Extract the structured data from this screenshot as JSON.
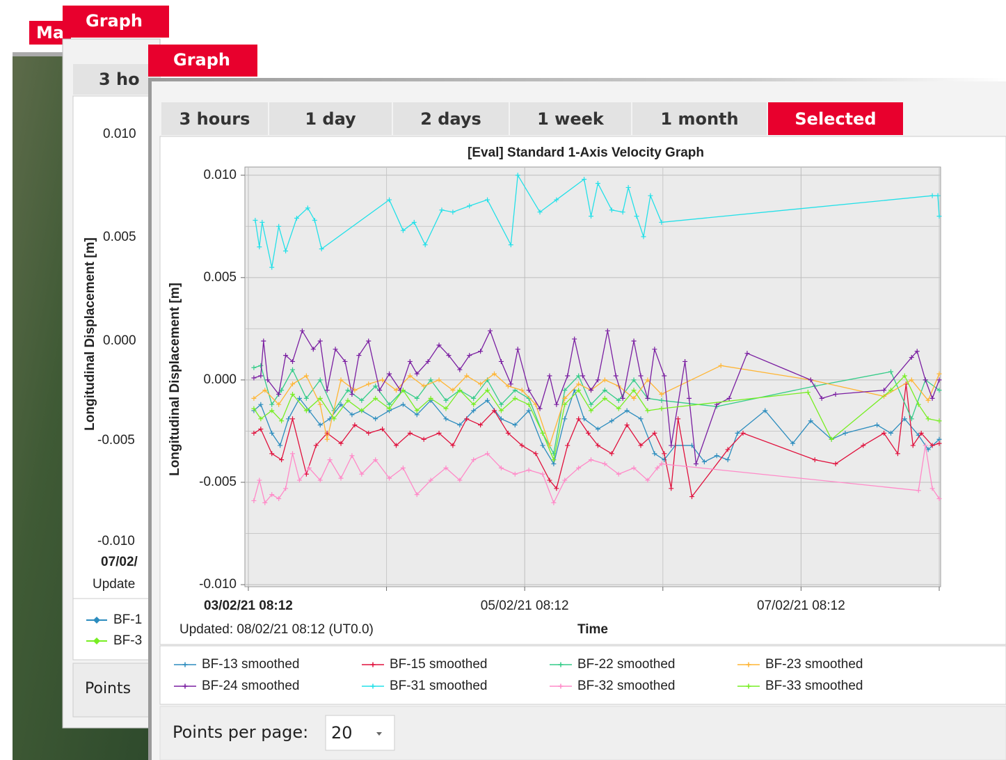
{
  "background_window": {
    "tab": "Ma"
  },
  "back_graph": {
    "tab": "Graph",
    "time_tab": "3 ho",
    "ylabel": "Longitudinal Displacement [m]",
    "y_labels": [
      "0.010",
      "0.005",
      "0.000",
      "-0.005",
      "-0.010"
    ],
    "date": "07/02/",
    "updated": "Update",
    "legend": [
      "BF-1",
      "BF-3"
    ],
    "points": "Points"
  },
  "front_graph": {
    "tab": "Graph",
    "time_tabs": [
      "3 hours",
      "1 day",
      "2 days",
      "1 week",
      "1 month",
      "Selected"
    ],
    "selected_tab": 5,
    "points_per_page_label": "Points per page:",
    "points_per_page": 20
  },
  "chart_data": {
    "type": "line",
    "title": "[Eval] Standard 1-Axis Velocity Graph",
    "xlabel": "Time",
    "ylabel": "Longitudinal Displacement [m]",
    "updated": "Updated: 08/02/21 08:12 (UT0.0)",
    "xlim": [
      -0.025,
      5.01
    ],
    "ylim": [
      -0.0101,
      0.0104
    ],
    "xticks": [
      {
        "value": 0,
        "label": "03/02/21 08:12"
      },
      {
        "value": 2,
        "label": "05/02/21 08:12"
      },
      {
        "value": 4,
        "label": "07/02/21 08:12"
      }
    ],
    "x_minor_ticks": [
      1,
      3,
      5
    ],
    "yticks": [
      {
        "value": 0.01,
        "label": "0.010"
      },
      0.005,
      {
        "value": 0,
        "label": "0.000"
      },
      -0.005,
      {
        "value": -0.01,
        "label": "-0.010"
      }
    ],
    "y_minor_ticks": [
      0.0075,
      0.0025,
      -0.0025,
      -0.0075
    ],
    "grid": true,
    "series": [
      {
        "name": "BF-13 smoothed",
        "color": "#2b8cbe",
        "x": [
          0.04,
          0.09,
          0.17,
          0.23,
          0.29,
          0.37,
          0.44,
          0.52,
          0.59,
          0.67,
          0.75,
          0.82,
          0.92,
          1.02,
          1.12,
          1.22,
          1.32,
          1.43,
          1.53,
          1.63,
          1.73,
          1.83,
          1.93,
          2.03,
          2.13,
          2.21,
          2.29,
          2.36,
          2.43,
          2.53,
          2.63,
          2.74,
          2.84,
          2.94,
          3.01,
          3.09,
          3.21,
          3.3,
          3.39,
          3.47,
          3.54,
          3.74,
          3.94,
          4.07,
          4.22,
          4.32,
          4.55,
          4.65,
          4.75,
          4.85,
          4.92,
          5.0
        ],
        "values": [
          -0.0015,
          -0.0012,
          -0.0026,
          -0.0032,
          -0.0019,
          -0.0009,
          -0.0015,
          -0.0022,
          -0.0019,
          -0.0012,
          -0.0017,
          -0.0015,
          -0.0019,
          -0.0015,
          -0.0012,
          -0.0017,
          -0.001,
          -0.0019,
          -0.0022,
          -0.0015,
          -0.001,
          -0.0019,
          -0.0022,
          -0.0015,
          -0.0032,
          -0.0041,
          -0.0019,
          -0.0005,
          -0.0019,
          -0.0024,
          -0.002,
          -0.0015,
          -0.0019,
          -0.0036,
          -0.0039,
          -0.0032,
          -0.0032,
          -0.004,
          -0.0037,
          -0.0039,
          -0.0026,
          -0.0015,
          -0.0031,
          -0.002,
          -0.0029,
          -0.0026,
          -0.0022,
          -0.0026,
          -0.0019,
          -0.0027,
          -0.0034,
          -0.0029
        ]
      },
      {
        "name": "BF-15 smoothed",
        "color": "#e0103c",
        "x": [
          0.04,
          0.09,
          0.17,
          0.24,
          0.32,
          0.42,
          0.49,
          0.57,
          0.67,
          0.77,
          0.87,
          0.97,
          1.07,
          1.17,
          1.27,
          1.38,
          1.48,
          1.58,
          1.68,
          1.78,
          1.88,
          1.98,
          2.08,
          2.18,
          2.23,
          2.31,
          2.39,
          2.46,
          2.53,
          2.63,
          2.74,
          2.84,
          2.94,
          3.01,
          3.06,
          3.11,
          3.21,
          3.47,
          3.58,
          4.1,
          4.25,
          4.45,
          4.6,
          4.7,
          4.76,
          4.81,
          4.87,
          4.95,
          5.0
        ],
        "values": [
          -0.0026,
          -0.0024,
          -0.0036,
          -0.0039,
          -0.0019,
          -0.0046,
          -0.0032,
          -0.0026,
          -0.0031,
          -0.0022,
          -0.0026,
          -0.0024,
          -0.0032,
          -0.0026,
          -0.0029,
          -0.0026,
          -0.0032,
          -0.0019,
          -0.0022,
          -0.0015,
          -0.0026,
          -0.0032,
          -0.0036,
          -0.0049,
          -0.0053,
          -0.0032,
          -0.0019,
          -0.0026,
          -0.0032,
          -0.0036,
          -0.0022,
          -0.0032,
          -0.0026,
          -0.0036,
          -0.0053,
          -0.0019,
          -0.0057,
          -0.0034,
          -0.0026,
          -0.0039,
          -0.0041,
          -0.0032,
          -0.0026,
          -0.0036,
          -0.0002,
          -0.0032,
          -0.0026,
          -0.0032,
          -0.0031
        ]
      },
      {
        "name": "BF-22 smoothed",
        "color": "#33cc88",
        "x": [
          0.04,
          0.09,
          0.17,
          0.24,
          0.32,
          0.42,
          0.52,
          0.62,
          0.72,
          0.82,
          0.92,
          1.02,
          1.12,
          1.22,
          1.32,
          1.43,
          1.53,
          1.63,
          1.73,
          1.83,
          1.93,
          2.03,
          2.13,
          2.21,
          2.29,
          2.39,
          2.48,
          2.58,
          2.68,
          2.79,
          2.89,
          2.99,
          3.39,
          4.1,
          4.65,
          4.8,
          4.9,
          5.0
        ],
        "values": [
          0.0006,
          0.0007,
          -0.0012,
          -0.0005,
          0.0005,
          -0.0009,
          0.0,
          -0.0015,
          -0.0005,
          -0.001,
          -0.0003,
          -0.0012,
          -0.0005,
          -0.0009,
          0.0,
          -0.001,
          -0.0005,
          -0.0009,
          0.0,
          -0.0012,
          -0.0005,
          -0.0009,
          -0.0026,
          -0.0036,
          -0.0005,
          0.0002,
          -0.0012,
          -0.0005,
          -0.001,
          0.0,
          -0.0009,
          -0.001,
          -0.0013,
          -0.0003,
          0.0004,
          -0.0019,
          0.0,
          -0.0005
        ]
      },
      {
        "name": "BF-23 smoothed",
        "color": "#ffb533",
        "x": [
          0.04,
          0.12,
          0.22,
          0.32,
          0.42,
          0.52,
          0.57,
          0.67,
          0.77,
          0.87,
          0.97,
          1.07,
          1.17,
          1.27,
          1.38,
          1.48,
          1.58,
          1.68,
          1.78,
          1.88,
          1.98,
          2.08,
          2.18,
          2.29,
          2.39,
          2.48,
          2.58,
          2.68,
          2.79,
          2.89,
          2.99,
          3.42,
          4.07,
          4.6,
          4.8,
          4.92,
          5.0
        ],
        "values": [
          -0.0009,
          -0.0005,
          -0.0012,
          -0.0002,
          0.0002,
          -0.0012,
          -0.0029,
          0.0,
          -0.0005,
          -0.0002,
          0.0,
          -0.0005,
          0.0002,
          -0.0003,
          0.0,
          -0.0005,
          0.0002,
          -0.0002,
          0.0003,
          -0.0003,
          -0.0005,
          -0.0012,
          -0.0032,
          -0.0009,
          -0.0002,
          -0.0005,
          0.0,
          -0.0003,
          -0.0009,
          0.0,
          -0.0007,
          0.0007,
          0.0,
          -0.0008,
          0.0,
          -0.001,
          0.0003
        ]
      },
      {
        "name": "BF-24 smoothed",
        "color": "#7a1ea1",
        "x": [
          0.04,
          0.09,
          0.11,
          0.14,
          0.22,
          0.27,
          0.32,
          0.39,
          0.47,
          0.52,
          0.57,
          0.63,
          0.7,
          0.75,
          0.8,
          0.87,
          0.95,
          1.02,
          1.1,
          1.17,
          1.22,
          1.3,
          1.38,
          1.45,
          1.53,
          1.6,
          1.68,
          1.75,
          1.83,
          1.9,
          1.95,
          2.03,
          2.11,
          2.18,
          2.23,
          2.31,
          2.36,
          2.42,
          2.48,
          2.53,
          2.6,
          2.66,
          2.71,
          2.79,
          2.84,
          2.89,
          2.94,
          3.01,
          3.06,
          3.16,
          3.19,
          3.24,
          3.39,
          3.48,
          3.61,
          4.07,
          4.15,
          4.25,
          4.6,
          4.8,
          4.84,
          4.9,
          4.95,
          5.0
        ],
        "values": [
          0.0001,
          0.0002,
          0.0019,
          0.0,
          -0.0007,
          0.0012,
          0.0009,
          0.0024,
          0.0015,
          0.0019,
          -0.0005,
          0.0015,
          0.0009,
          -0.0007,
          0.0012,
          0.0019,
          -0.0005,
          0.0003,
          -0.0005,
          0.0009,
          0.0003,
          0.0009,
          0.0017,
          0.0012,
          0.0005,
          0.0012,
          0.0014,
          0.0024,
          0.0009,
          -0.0002,
          0.0015,
          -0.0005,
          -0.0014,
          0.0002,
          -0.0012,
          0.0002,
          0.002,
          0.0002,
          -0.0005,
          0.0,
          0.0024,
          0.0002,
          -0.0009,
          0.0019,
          0.0002,
          -0.0009,
          0.0015,
          0.0002,
          -0.0032,
          0.0009,
          -0.0009,
          -0.0041,
          -0.0012,
          -0.0009,
          0.0013,
          0.0,
          -0.0009,
          -0.0007,
          -0.0005,
          0.0011,
          0.0014,
          0.0,
          -0.0009,
          0.0
        ]
      },
      {
        "name": "BF-31 smoothed",
        "color": "#22e0e8",
        "x": [
          0.05,
          0.08,
          0.1,
          0.17,
          0.22,
          0.27,
          0.35,
          0.43,
          0.48,
          0.53,
          1.02,
          1.12,
          1.2,
          1.28,
          1.4,
          1.48,
          1.6,
          1.73,
          1.9,
          1.95,
          2.11,
          2.23,
          2.43,
          2.48,
          2.53,
          2.63,
          2.71,
          2.75,
          2.81,
          2.86,
          2.91,
          2.99,
          4.95,
          4.99,
          5.0
        ],
        "values": [
          0.0078,
          0.0065,
          0.0077,
          0.0055,
          0.0075,
          0.0063,
          0.0079,
          0.0084,
          0.0078,
          0.0064,
          0.0088,
          0.0073,
          0.0077,
          0.0066,
          0.0083,
          0.0082,
          0.0085,
          0.0088,
          0.0066,
          0.01,
          0.0082,
          0.0088,
          0.0098,
          0.008,
          0.0096,
          0.0083,
          0.0082,
          0.0094,
          0.008,
          0.007,
          0.009,
          0.0077,
          0.009,
          0.009,
          0.008
        ]
      },
      {
        "name": "BF-32 smoothed",
        "color": "#ff8ac8",
        "x": [
          0.04,
          0.08,
          0.12,
          0.17,
          0.22,
          0.27,
          0.32,
          0.37,
          0.44,
          0.52,
          0.59,
          0.67,
          0.75,
          0.82,
          0.92,
          1.02,
          1.12,
          1.22,
          1.32,
          1.43,
          1.53,
          1.63,
          1.73,
          1.83,
          1.93,
          2.03,
          2.13,
          2.21,
          2.29,
          2.39,
          2.48,
          2.58,
          2.68,
          2.79,
          2.89,
          2.96,
          2.99,
          4.85,
          4.9,
          4.95,
          5.0
        ],
        "values": [
          -0.0059,
          -0.0049,
          -0.006,
          -0.0056,
          -0.0058,
          -0.0053,
          -0.0036,
          -0.0049,
          -0.0043,
          -0.0049,
          -0.0039,
          -0.0048,
          -0.0037,
          -0.0046,
          -0.0039,
          -0.0048,
          -0.0043,
          -0.0056,
          -0.0049,
          -0.0043,
          -0.0049,
          -0.0039,
          -0.0036,
          -0.0043,
          -0.0046,
          -0.0044,
          -0.0046,
          -0.006,
          -0.0049,
          -0.0043,
          -0.0039,
          -0.0041,
          -0.0046,
          -0.0043,
          -0.0049,
          -0.0043,
          -0.0041,
          -0.0054,
          -0.0032,
          -0.0053,
          -0.0058
        ]
      },
      {
        "name": "BF-33 smoothed",
        "color": "#77ee22",
        "x": [
          0.04,
          0.09,
          0.17,
          0.24,
          0.32,
          0.42,
          0.52,
          0.62,
          0.72,
          0.82,
          0.92,
          1.02,
          1.12,
          1.22,
          1.32,
          1.43,
          1.53,
          1.63,
          1.73,
          1.83,
          1.93,
          2.03,
          2.13,
          2.21,
          2.29,
          2.39,
          2.48,
          2.58,
          2.68,
          2.79,
          2.89,
          2.99,
          4.05,
          4.22,
          4.65,
          4.75,
          4.85,
          4.92,
          5.0
        ],
        "values": [
          -0.0014,
          -0.0019,
          -0.0015,
          -0.002,
          -0.0007,
          -0.0015,
          -0.0009,
          -0.0019,
          -0.001,
          -0.0015,
          -0.0009,
          -0.0014,
          -0.0005,
          -0.0015,
          -0.0009,
          -0.0014,
          -0.0005,
          -0.0012,
          -0.0005,
          -0.0015,
          -0.0009,
          -0.0012,
          -0.0026,
          -0.0039,
          -0.0012,
          -0.0005,
          -0.0015,
          -0.0009,
          -0.0014,
          -0.0005,
          -0.0015,
          -0.0014,
          -0.0006,
          -0.0029,
          -0.0005,
          0.0002,
          -0.0012,
          -0.0019,
          -0.002
        ]
      }
    ]
  }
}
